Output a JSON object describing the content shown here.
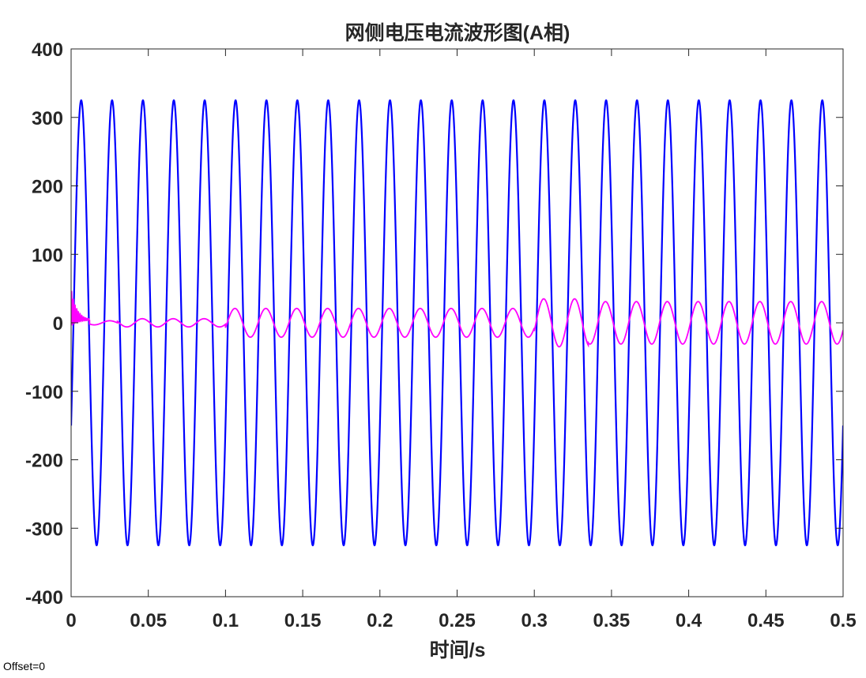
{
  "chart_data": {
    "type": "line",
    "title": "网侧电压电流波形图(A相)",
    "xlabel": "时间/s",
    "ylabel": "",
    "xlim": [
      0,
      0.5
    ],
    "ylim": [
      -400,
      400
    ],
    "xticks": [
      0,
      0.05,
      0.1,
      0.15,
      0.2,
      0.25,
      0.3,
      0.35,
      0.4,
      0.45,
      0.5
    ],
    "xtick_labels": [
      "0",
      "0.05",
      "0.1",
      "0.15",
      "0.2",
      "0.25",
      "0.3",
      "0.35",
      "0.4",
      "0.45",
      "0.5"
    ],
    "yticks": [
      -400,
      -300,
      -200,
      -100,
      0,
      100,
      200,
      300,
      400
    ],
    "ytick_labels": [
      "-400",
      "-300",
      "-200",
      "-100",
      "0",
      "100",
      "200",
      "300",
      "400"
    ],
    "grid": false,
    "series": [
      {
        "color": "#0000ff",
        "description": "grid voltage sine, 50 Hz",
        "x": [
          0,
          0.0025,
          0.005,
          0.0075,
          0.01,
          0.0125,
          0.015,
          0.0175,
          0.02,
          0.0225,
          0.025,
          0.0275,
          0.03,
          0.0325,
          0.035,
          0.0375,
          0.04,
          0.0425,
          0.045,
          0.0475,
          0.05
        ],
        "y": [
          -150,
          180,
          320,
          303,
          150,
          -180,
          -320,
          -303,
          -150,
          180,
          320,
          303,
          150,
          -180,
          -320,
          -303,
          -150,
          180,
          320,
          303,
          150
        ],
        "amplitude": 325,
        "frequency_hz": 50
      },
      {
        "color": "#ff00ff",
        "description": "grid current",
        "x": [
          0,
          0.003,
          0.005,
          0.01,
          0.02,
          0.03,
          0.04,
          0.05,
          0.06,
          0.07,
          0.08,
          0.09,
          0.1,
          0.11,
          0.12,
          0.13,
          0.14,
          0.15,
          0.2,
          0.25,
          0.3,
          0.31,
          0.32,
          0.33,
          0.35,
          0.4,
          0.45,
          0.5
        ],
        "y": [
          0,
          35,
          18,
          5,
          3,
          -8,
          7,
          -5,
          5,
          -5,
          0,
          -3,
          3,
          -20,
          20,
          -20,
          20,
          -20,
          20,
          -20,
          0,
          20,
          37,
          -33,
          32,
          32,
          32,
          30
        ]
      }
    ]
  },
  "footer": {
    "offset_text": "Offset=0"
  }
}
